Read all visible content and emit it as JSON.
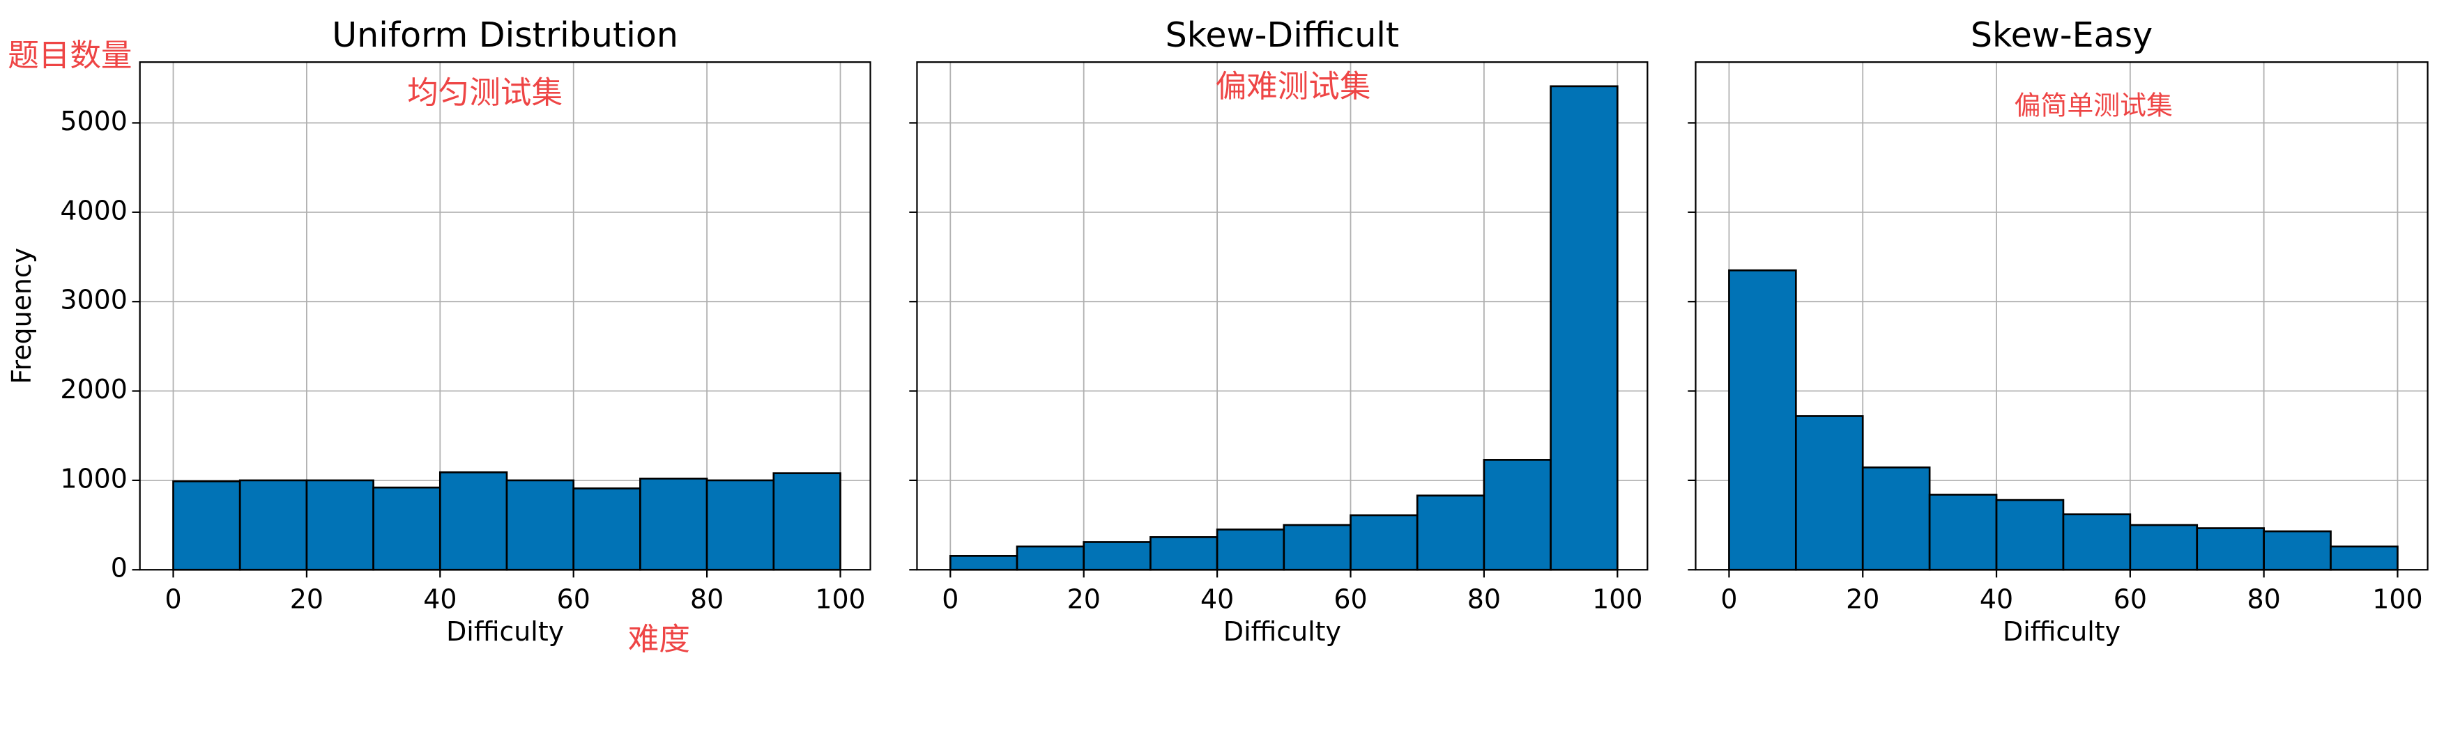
{
  "chart_data": [
    {
      "type": "histogram",
      "title": "Uniform Distribution",
      "xlabel": "Difficulty",
      "ylabel": "Frequency",
      "bins": [
        0,
        10,
        20,
        30,
        40,
        50,
        60,
        70,
        80,
        90,
        100
      ],
      "values": [
        990,
        1000,
        1000,
        920,
        1090,
        1000,
        910,
        1020,
        1000,
        1080
      ],
      "color": "#0173b6",
      "xlim": [
        -5,
        104.5
      ],
      "ylim": [
        0,
        5680
      ],
      "xticks": [
        0,
        20,
        40,
        60,
        80,
        100
      ],
      "yticks": [
        0,
        1000,
        2000,
        3000,
        4000,
        5000
      ],
      "ytick_labels": true,
      "grid": true,
      "annotations": [
        "题目数量",
        "均匀测试集",
        "难度"
      ]
    },
    {
      "type": "histogram",
      "title": "Skew-Difficult",
      "xlabel": "Difficulty",
      "bins": [
        0,
        10,
        20,
        30,
        40,
        50,
        60,
        70,
        80,
        90,
        100
      ],
      "values": [
        155,
        260,
        310,
        365,
        450,
        500,
        610,
        830,
        1230,
        5410
      ],
      "color": "#0173b6",
      "xlim": [
        -5,
        104.5
      ],
      "ylim": [
        0,
        5680
      ],
      "xticks": [
        0,
        20,
        40,
        60,
        80,
        100
      ],
      "yticks": [
        0,
        1000,
        2000,
        3000,
        4000,
        5000
      ],
      "ytick_labels": false,
      "grid": true,
      "annotations": [
        "偏难测试集"
      ]
    },
    {
      "type": "histogram",
      "title": "Skew-Easy",
      "xlabel": "Difficulty",
      "bins": [
        0,
        10,
        20,
        30,
        40,
        50,
        60,
        70,
        80,
        90,
        100
      ],
      "values": [
        3350,
        1720,
        1145,
        840,
        780,
        620,
        500,
        465,
        430,
        260
      ],
      "color": "#0173b6",
      "xlim": [
        -5,
        104.5
      ],
      "ylim": [
        0,
        5680
      ],
      "xticks": [
        0,
        20,
        40,
        60,
        80,
        100
      ],
      "yticks": [
        0,
        1000,
        2000,
        3000,
        4000,
        5000
      ],
      "ytick_labels": false,
      "grid": true,
      "annotations": [
        "偏简单测试集"
      ]
    }
  ]
}
